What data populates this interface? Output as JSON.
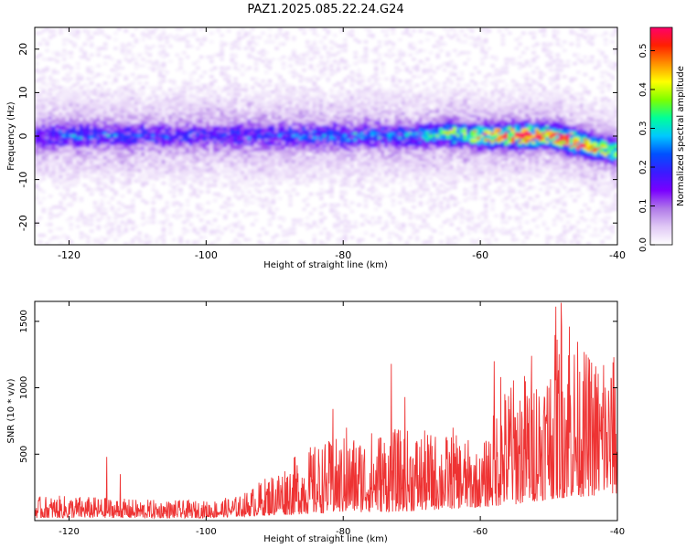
{
  "title": "PAZ1.2025.085.22.24.G24",
  "chart_data": [
    {
      "type": "heatmap",
      "xlabel": "Height of straight line (km)",
      "ylabel": "Frequency (Hz)",
      "xlim": [
        -125,
        -40
      ],
      "ylim": [
        -25,
        25
      ],
      "xticks": [
        -120,
        -100,
        -80,
        -60,
        -40
      ],
      "yticks": [
        -20,
        -10,
        0,
        10,
        20
      ],
      "colorbar": {
        "label": "Normalized spectral amplitude",
        "range": [
          0.0,
          0.56
        ],
        "ticks": [
          0.0,
          0.1,
          0.2,
          0.3,
          0.4,
          0.5
        ],
        "colors": [
          "#ffffff",
          "#e0c8f5",
          "#b07ae8",
          "#7a00ff",
          "#3a1bff",
          "#0050ff",
          "#00c8ff",
          "#00ff9a",
          "#7dff00",
          "#ffff00",
          "#ff9000",
          "#ff2000",
          "#ff006a"
        ]
      },
      "ridge": {
        "x": [
          -125,
          -120,
          -110,
          -100,
          -90,
          -80,
          -70,
          -65,
          -60,
          -55,
          -50,
          -45,
          -40
        ],
        "y": [
          0,
          0,
          0,
          0,
          0,
          0,
          0,
          0.5,
          0,
          0,
          0,
          -2,
          -4
        ]
      },
      "ridge_peak_amplitude": {
        "x": [
          -125,
          -120,
          -110,
          -100,
          -90,
          -80,
          -70,
          -65,
          -60,
          -55,
          -50,
          -45,
          -40
        ],
        "values": [
          0.12,
          0.18,
          0.15,
          0.12,
          0.16,
          0.18,
          0.2,
          0.3,
          0.42,
          0.56,
          0.48,
          0.5,
          0.3
        ]
      }
    },
    {
      "type": "line",
      "xlabel": "Height of straight line (km)",
      "ylabel": "SNR (10 * v/v)",
      "xlim": [
        -125,
        -40
      ],
      "ylim": [
        0,
        1650
      ],
      "xticks": [
        -120,
        -100,
        -80,
        -60,
        -40
      ],
      "yticks": [
        500,
        1000,
        1500
      ],
      "color": "#ee3333",
      "envelope": {
        "x": [
          -125,
          -120,
          -110,
          -100,
          -95,
          -90,
          -85,
          -80,
          -75,
          -70,
          -65,
          -62,
          -60,
          -57,
          -55,
          -50,
          -48,
          -45,
          -40
        ],
        "y": [
          180,
          190,
          160,
          150,
          190,
          380,
          560,
          640,
          700,
          690,
          660,
          630,
          500,
          1000,
          1100,
          1250,
          1600,
          1300,
          1200
        ]
      },
      "floor": {
        "x": [
          -125,
          -100,
          -90,
          -80,
          -70,
          -60,
          -55,
          -50,
          -45,
          -40
        ],
        "y": [
          20,
          20,
          40,
          60,
          70,
          100,
          120,
          160,
          180,
          200
        ]
      },
      "spikes": [
        {
          "x": -114.5,
          "y": 480
        },
        {
          "x": -112.5,
          "y": 350
        },
        {
          "x": -81.5,
          "y": 840
        },
        {
          "x": -79.5,
          "y": 700
        },
        {
          "x": -73,
          "y": 1180
        },
        {
          "x": -71,
          "y": 930
        },
        {
          "x": -64,
          "y": 700
        },
        {
          "x": -58,
          "y": 1200
        },
        {
          "x": -57,
          "y": 1080
        },
        {
          "x": -55.5,
          "y": 1000
        },
        {
          "x": -52.5,
          "y": 1240
        },
        {
          "x": -50,
          "y": 1000
        },
        {
          "x": -49,
          "y": 1610
        },
        {
          "x": -48.2,
          "y": 1640
        },
        {
          "x": -47,
          "y": 1460
        },
        {
          "x": -45,
          "y": 1050
        },
        {
          "x": -42,
          "y": 1170
        },
        {
          "x": -40.5,
          "y": 1230
        }
      ]
    }
  ]
}
